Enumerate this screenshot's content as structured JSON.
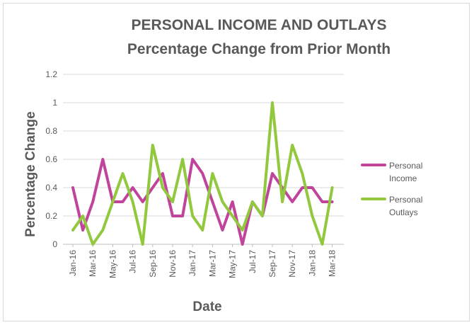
{
  "chart_data": {
    "type": "line",
    "title_line1": "PERSONAL INCOME AND OUTLAYS",
    "title_line2": "Percentage Change from Prior Month",
    "xlabel": "Date",
    "ylabel": "Percentage Change",
    "ylim": [
      0,
      1.2
    ],
    "y_ticks": [
      "0",
      "0.2",
      "0.4",
      "0.6",
      "0.8",
      "1",
      "1.2"
    ],
    "x_tick_labels": [
      "Jan-16",
      "Mar-16",
      "May-16",
      "Jul-16",
      "Sep-16",
      "Nov-16",
      "Jan-17",
      "Mar-17",
      "May-17",
      "Jul-17",
      "Sep-17",
      "Nov-17",
      "Jan-18",
      "Mar-18"
    ],
    "categories": [
      "Jan-16",
      "Feb-16",
      "Mar-16",
      "Apr-16",
      "May-16",
      "Jun-16",
      "Jul-16",
      "Aug-16",
      "Sep-16",
      "Oct-16",
      "Nov-16",
      "Dec-16",
      "Jan-17",
      "Feb-17",
      "Mar-17",
      "Apr-17",
      "May-17",
      "Jun-17",
      "Jul-17",
      "Aug-17",
      "Sep-17",
      "Oct-17",
      "Nov-17",
      "Dec-17",
      "Jan-18",
      "Feb-18",
      "Mar-18"
    ],
    "grid": "horizontal",
    "legend_position": "right",
    "series": [
      {
        "name_line1": "Personal",
        "name_line2": "Income",
        "color": "#c0449b",
        "values": [
          0.4,
          0.1,
          0.3,
          0.6,
          0.3,
          0.3,
          0.4,
          0.3,
          0.4,
          0.5,
          0.2,
          0.2,
          0.6,
          0.5,
          0.3,
          0.1,
          0.3,
          0.0,
          0.3,
          0.2,
          0.5,
          0.4,
          0.3,
          0.4,
          0.4,
          0.3,
          0.3
        ]
      },
      {
        "name_line1": "Personal",
        "name_line2": "Outlays",
        "color": "#92c83e",
        "values": [
          0.1,
          0.2,
          0.0,
          0.1,
          0.3,
          0.5,
          0.3,
          0.0,
          0.7,
          0.4,
          0.3,
          0.6,
          0.2,
          0.1,
          0.5,
          0.3,
          0.2,
          0.1,
          0.3,
          0.2,
          1.0,
          0.3,
          0.7,
          0.5,
          0.2,
          0.0,
          0.4
        ]
      }
    ]
  }
}
